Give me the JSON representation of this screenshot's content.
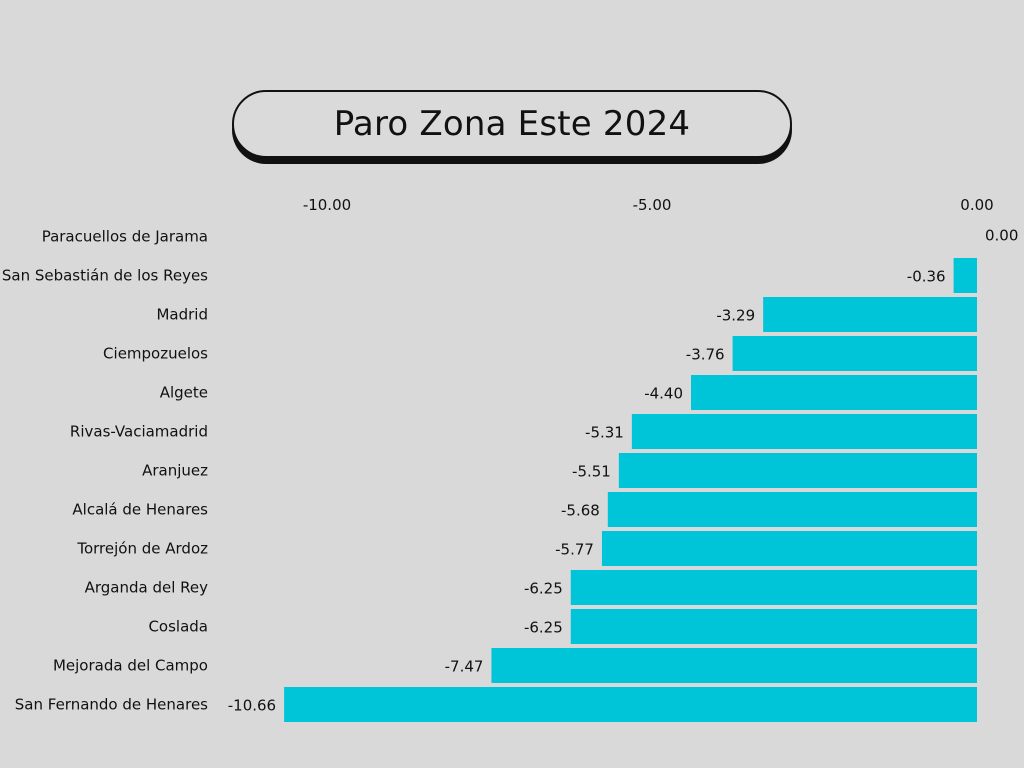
{
  "chart_data": {
    "type": "bar",
    "orientation": "horizontal",
    "title": "Paro Zona Este 2024",
    "categories": [
      "Paracuellos de Jarama",
      "San Sebastián de los Reyes",
      "Madrid",
      "Ciempozuelos",
      "Algete",
      "Rivas-Vaciamadrid",
      "Aranjuez",
      "Alcalá de Henares",
      "Torrejón de Ardoz",
      "Arganda del Rey",
      "Coslada",
      "Mejorada del Campo",
      "San Fernando de Henares"
    ],
    "values": [
      0.0,
      -0.36,
      -3.29,
      -3.76,
      -4.4,
      -5.31,
      -5.51,
      -5.68,
      -5.77,
      -6.25,
      -6.25,
      -7.47,
      -10.66
    ],
    "value_labels": [
      "0.00",
      "-0.36",
      "-3.29",
      "-3.76",
      "-4.40",
      "-5.31",
      "-5.51",
      "-5.68",
      "-5.77",
      "-6.25",
      "-6.25",
      "-7.47",
      "-10.66"
    ],
    "x_ticks": [
      -10,
      -5,
      0
    ],
    "x_tick_labels": [
      "-10.00",
      "-5.00",
      "0.00"
    ],
    "xlim": [
      -10.66,
      0
    ],
    "axis_position": "top",
    "grid": false,
    "bar_color": "#00c5d9",
    "background_color": "#d9d9d9"
  }
}
